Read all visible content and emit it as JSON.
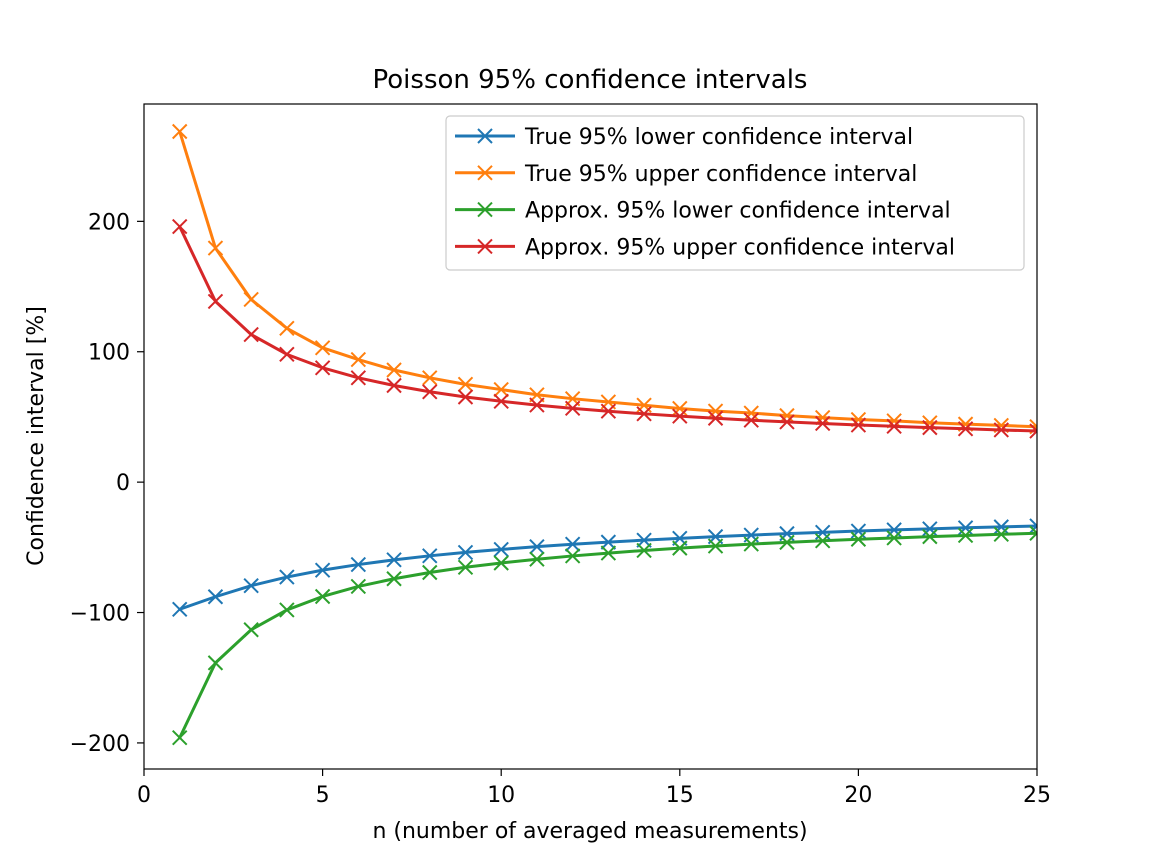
{
  "chart_data": {
    "type": "line",
    "title": "Poisson 95% confidence intervals",
    "xlabel": "n (number of averaged measurements)",
    "ylabel": "Confidence interval [%]",
    "xlim": [
      0,
      25
    ],
    "ylim": [
      -220,
      290
    ],
    "xticks": [
      0,
      5,
      10,
      15,
      20,
      25
    ],
    "xtick_labels": [
      "0",
      "5",
      "10",
      "15",
      "20",
      "25"
    ],
    "yticks": [
      -200,
      -100,
      0,
      100,
      200
    ],
    "ytick_labels": [
      "−200",
      "−100",
      "0",
      "100",
      "200"
    ],
    "grid": false,
    "legend_position": "top-right",
    "marker": "x",
    "x": [
      1,
      2,
      3,
      4,
      5,
      6,
      7,
      8,
      9,
      10,
      11,
      12,
      13,
      14,
      15,
      16,
      17,
      18,
      19,
      20,
      21,
      22,
      23,
      24,
      25
    ],
    "series": [
      {
        "name": "True 95% lower confidence interval",
        "color": "#1f77b4",
        "values": [
          -97.5,
          -87.9,
          -79.4,
          -72.8,
          -67.5,
          -63.2,
          -59.6,
          -56.5,
          -53.9,
          -51.6,
          -49.5,
          -47.6,
          -46.0,
          -44.5,
          -43.1,
          -41.8,
          -40.6,
          -39.5,
          -38.5,
          -37.5,
          -36.6,
          -35.8,
          -35.0,
          -34.3,
          -33.6
        ]
      },
      {
        "name": "True 95% upper confidence interval",
        "color": "#ff7f0e",
        "values": [
          268.9,
          179.5,
          140.1,
          118.0,
          103.0,
          94.0,
          86.0,
          80.0,
          75.0,
          71.0,
          67.0,
          64.0,
          61.5,
          59.0,
          56.5,
          54.5,
          53.0,
          51.0,
          49.5,
          48.0,
          47.0,
          45.5,
          44.5,
          43.5,
          42.5
        ]
      },
      {
        "name": "Approx. 95% lower confidence interval",
        "color": "#2ca02c",
        "values": [
          -196.0,
          -138.6,
          -113.2,
          -98.0,
          -87.7,
          -80.0,
          -74.1,
          -69.3,
          -65.3,
          -62.0,
          -59.1,
          -56.6,
          -54.4,
          -52.4,
          -50.6,
          -49.0,
          -47.5,
          -46.2,
          -45.0,
          -43.8,
          -42.8,
          -41.8,
          -40.9,
          -40.0,
          -39.2
        ]
      },
      {
        "name": "Approx. 95% upper confidence interval",
        "color": "#d62728",
        "values": [
          196.0,
          138.6,
          113.2,
          98.0,
          87.7,
          80.0,
          74.1,
          69.3,
          65.3,
          62.0,
          59.1,
          56.6,
          54.4,
          52.4,
          50.6,
          49.0,
          47.5,
          46.2,
          45.0,
          43.8,
          42.8,
          41.8,
          40.9,
          40.0,
          39.2
        ]
      }
    ]
  }
}
